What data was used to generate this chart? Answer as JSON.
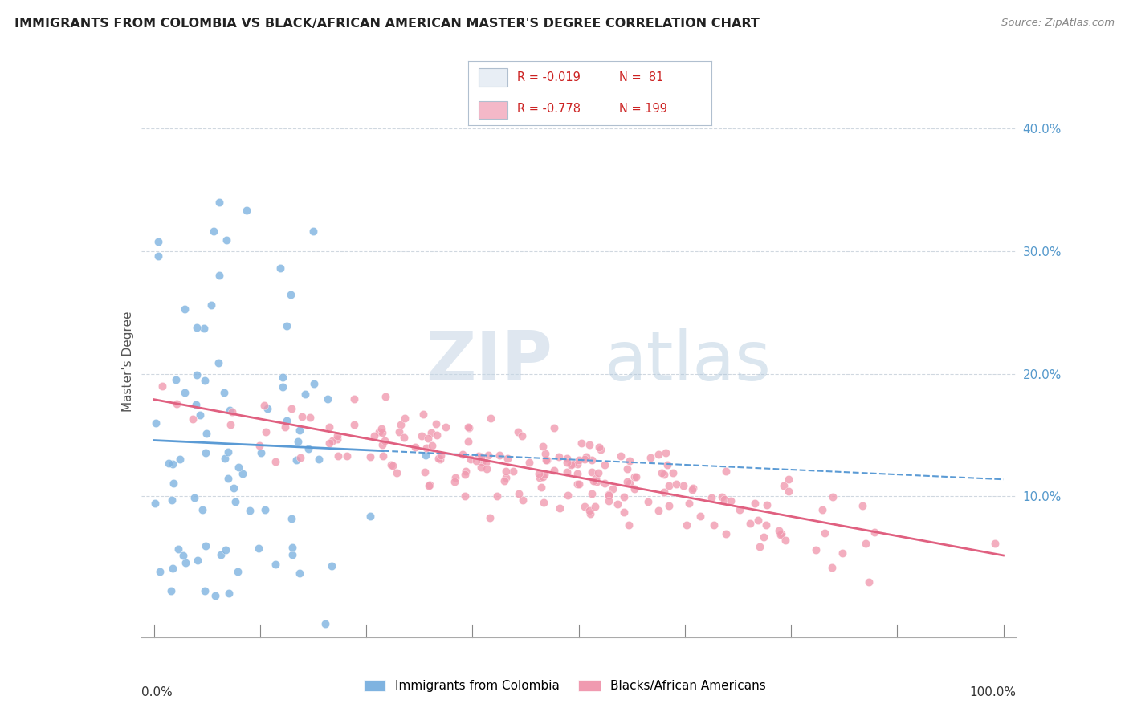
{
  "title": "IMMIGRANTS FROM COLOMBIA VS BLACK/AFRICAN AMERICAN MASTER'S DEGREE CORRELATION CHART",
  "source": "Source: ZipAtlas.com",
  "ylabel": "Master's Degree",
  "r1": -0.019,
  "n1": 81,
  "r2": -0.778,
  "n2": 199,
  "series1_color": "#7fb3e0",
  "series2_color": "#f09ab0",
  "trendline1_color": "#5b9bd5",
  "trendline2_color": "#e06080",
  "watermark_zip": "#c8d8e8",
  "watermark_atlas": "#b8cce0",
  "background_color": "#ffffff",
  "grid_color": "#d0d8e0",
  "right_tick_color": "#5599cc",
  "legend_box_color": "#e8eef5",
  "legend_border_color": "#b0bfcf"
}
